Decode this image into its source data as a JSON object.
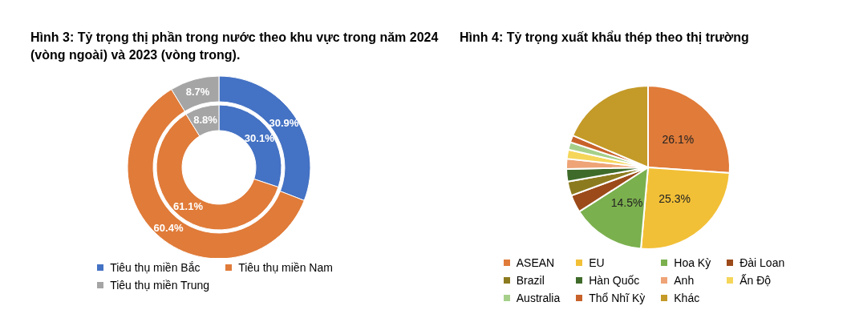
{
  "chart_data": [
    {
      "type": "donut",
      "title": "Hình 3: Tỷ trọng thị phần trong nước theo khu vực trong năm 2024 (vòng ngoài) và 2023 (vòng trong).",
      "categories": [
        "Tiêu thụ miền Bắc",
        "Tiêu thụ miền Nam",
        "Tiêu thụ miền Trung"
      ],
      "colors": [
        "#4472c4",
        "#e07b39",
        "#a5a5a5"
      ],
      "legend": "bottom",
      "series": [
        {
          "values": [
            30.9,
            60.4,
            8.7
          ],
          "value_labels": [
            "30.9%",
            "60.4%",
            "8.7%"
          ]
        },
        {
          "values": [
            30.1,
            61.1,
            8.8
          ],
          "value_labels": [
            "30.1%",
            "61.1%",
            "8.8%"
          ]
        }
      ]
    },
    {
      "type": "pie",
      "title": "Hình 4: Tỷ trọng xuất khẩu thép theo thị trường",
      "categories": [
        "ASEAN",
        "EU",
        "Hoa Kỳ",
        "Đài Loan",
        "Brazil",
        "Hàn Quốc",
        "Anh",
        "Ấn Độ",
        "Australia",
        "Thổ Nhĩ Kỳ",
        "Khác"
      ],
      "values": [
        26.1,
        25.3,
        14.5,
        3.5,
        2.8,
        2.5,
        2.0,
        1.8,
        1.5,
        1.4,
        18.6
      ],
      "value_labels": [
        "26.1%",
        "25.3%",
        "14.5%",
        null,
        null,
        null,
        null,
        null,
        null,
        null,
        null
      ],
      "colors": [
        "#e07b39",
        "#f2c037",
        "#7bb04e",
        "#9c4a1a",
        "#8c7a1e",
        "#3f6b2a",
        "#eea477",
        "#f5d65a",
        "#a6d08a",
        "#c8622a",
        "#c49a28"
      ],
      "legend": "bottom"
    }
  ]
}
